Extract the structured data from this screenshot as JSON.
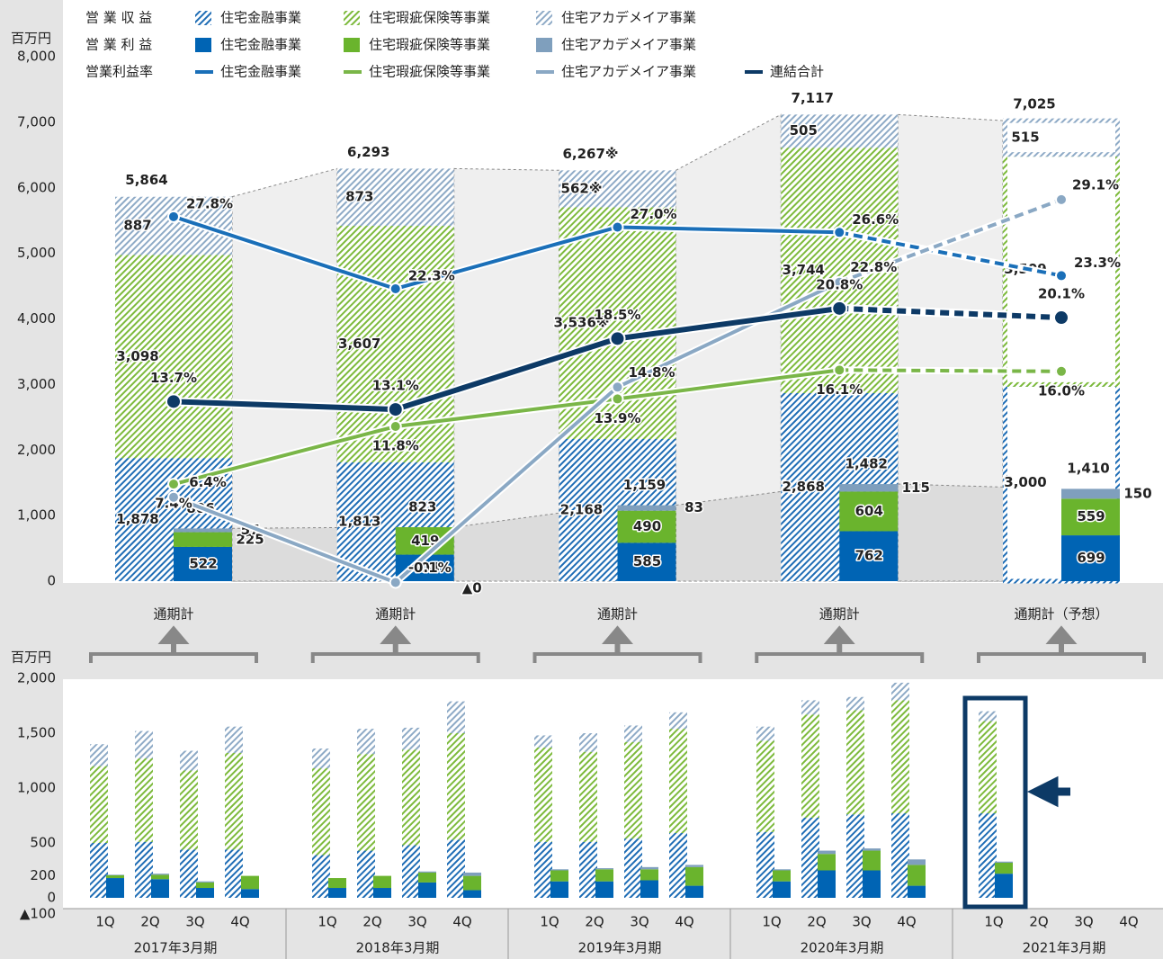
{
  "chart_data": [
    {
      "type": "bar",
      "unit": "百万円",
      "legend_rows": [
        "営 業 収 益",
        "営 業 利 益",
        "営業利益率"
      ],
      "categories": [
        "通期計",
        "通期計",
        "通期計",
        "通期計",
        "通期計（予想）"
      ],
      "forecast": [
        false,
        false,
        false,
        false,
        true
      ],
      "ylim": [
        0,
        8000
      ],
      "yticks": [
        0,
        {
          "value": 1000,
          "label": "1,000"
        },
        {
          "value": 2000,
          "label": "2,000"
        },
        {
          "value": 3000,
          "label": "3,000"
        },
        {
          "value": 4000,
          "label": "4,000"
        },
        {
          "value": 5000,
          "label": "5,000"
        },
        {
          "value": 6000,
          "label": "6,000"
        },
        {
          "value": 7000,
          "label": "7,000"
        },
        {
          "value": 8000,
          "label": "8,000"
        }
      ],
      "y2lim": [
        0,
        40
      ],
      "revenue": {
        "series": [
          {
            "name": "住宅金融事業",
            "color": "#1f6db5",
            "values": [
              1878,
              1813,
              2168,
              2868,
              3000
            ],
            "value_labels": [
              "1,878",
              "1,813",
              "2,168",
              "2,868",
              "3,000"
            ]
          },
          {
            "name": "住宅瑕疵保険等事業",
            "color": "#7dba3c",
            "values": [
              3098,
              3607,
              3536,
              3744,
              3509
            ],
            "value_labels": [
              "3,098",
              "3,607",
              "3,536※",
              "3,744",
              "3,509"
            ]
          },
          {
            "name": "住宅アカデメイア事業",
            "color": "#8eaac6",
            "values": [
              887,
              873,
              562,
              505,
              515
            ],
            "value_labels": [
              "887",
              "873",
              "562※",
              "505",
              "515"
            ]
          }
        ],
        "totals": {
          "values": [
            5864,
            6293,
            6267,
            7117,
            7025
          ],
          "value_labels": [
            "5,864",
            "6,293",
            "6,267※",
            "7,117",
            "7,025"
          ]
        }
      },
      "profit": {
        "series": [
          {
            "name": "住宅金融事業",
            "color": "#0064b4",
            "values": [
              522,
              404,
              585,
              762,
              699
            ]
          },
          {
            "name": "住宅瑕疵保険等事業",
            "color": "#6ab42d",
            "values": [
              225,
              419,
              490,
              604,
              559
            ]
          },
          {
            "name": "住宅アカデメイア事業",
            "color": "#7f9fbd",
            "values": [
              57,
              0,
              83,
              115,
              150
            ],
            "value_labels": [
              "57",
              "▲0",
              "83",
              "115",
              "150"
            ]
          }
        ],
        "totals": {
          "values": [
            806,
            823,
            1159,
            1482,
            1410
          ],
          "value_labels": [
            "806",
            "823",
            "1,159",
            "1,482",
            "1,410"
          ]
        }
      },
      "margin": {
        "series": [
          {
            "name": "住宅金融事業",
            "color": "#1a6fb8",
            "values": [
              27.8,
              22.3,
              27.0,
              26.6,
              23.3
            ],
            "value_labels": [
              "27.8%",
              "22.3%",
              "27.0%",
              "26.6%",
              "23.3%"
            ]
          },
          {
            "name": "住宅瑕疵保険等事業",
            "color": "#7ab648",
            "values": [
              7.4,
              11.8,
              13.9,
              16.1,
              16.0
            ],
            "value_labels": [
              "7.4%",
              "11.8%",
              "13.9%",
              "16.1%",
              "16.0%"
            ]
          },
          {
            "name": "住宅アカデメイア事業",
            "color": "#8aa8c4",
            "values": [
              6.4,
              -0.1,
              14.8,
              22.8,
              29.1
            ],
            "value_labels": [
              "6.4%",
              "-0.1%",
              "14.8%",
              "22.8%",
              "29.1%"
            ]
          },
          {
            "name": "連結合計",
            "color": "#0d3a66",
            "values": [
              13.7,
              13.1,
              18.5,
              20.8,
              20.1
            ],
            "value_labels": [
              "13.7%",
              "13.1%",
              "18.5%",
              "20.8%",
              "20.1%"
            ]
          }
        ]
      }
    },
    {
      "type": "bar",
      "unit": "百万円",
      "groups": [
        "2017年3月期",
        "2018年3月期",
        "2019年3月期",
        "2020年3月期",
        "2021年3月期"
      ],
      "categories": [
        "1Q",
        "2Q",
        "3Q",
        "4Q",
        "1Q",
        "2Q",
        "3Q",
        "4Q",
        "1Q",
        "2Q",
        "3Q",
        "4Q",
        "1Q",
        "2Q",
        "3Q",
        "4Q",
        "1Q",
        "2Q",
        "3Q",
        "4Q"
      ],
      "ylim": [
        -100,
        2000
      ],
      "yticks": [
        {
          "value": -100,
          "label": "▲100"
        },
        0,
        200,
        500,
        {
          "value": 1000,
          "label": "1,000"
        },
        {
          "value": 1500,
          "label": "1,500"
        },
        {
          "value": 2000,
          "label": "2,000"
        }
      ],
      "revenue_series": [
        {
          "color": "#1f6db5",
          "values": [
            500,
            510,
            440,
            440,
            390,
            430,
            480,
            530,
            510,
            510,
            540,
            590,
            600,
            730,
            760,
            770,
            770,
            null,
            null,
            null
          ]
        },
        {
          "color": "#7dba3c",
          "values": [
            700,
            760,
            720,
            880,
            790,
            880,
            870,
            970,
            860,
            820,
            880,
            950,
            830,
            940,
            950,
            1030,
            840,
            null,
            null,
            null
          ]
        },
        {
          "color": "#8eaac6",
          "values": [
            200,
            250,
            180,
            240,
            180,
            230,
            200,
            290,
            110,
            170,
            150,
            150,
            130,
            130,
            120,
            160,
            90,
            null,
            null,
            null
          ]
        }
      ],
      "profit_series": [
        {
          "color": "#0064b4",
          "values": [
            180,
            170,
            90,
            80,
            90,
            90,
            140,
            70,
            150,
            150,
            160,
            110,
            150,
            250,
            250,
            110,
            220,
            null,
            null,
            null
          ]
        },
        {
          "color": "#6ab42d",
          "values": [
            25,
            40,
            50,
            120,
            90,
            110,
            90,
            130,
            100,
            110,
            100,
            170,
            100,
            150,
            180,
            190,
            100,
            null,
            null,
            null
          ]
        },
        {
          "color": "#7f9fbd",
          "values": [
            5,
            10,
            10,
            0,
            0,
            0,
            10,
            30,
            10,
            10,
            20,
            20,
            10,
            30,
            20,
            50,
            10,
            null,
            null,
            null
          ]
        }
      ]
    }
  ]
}
